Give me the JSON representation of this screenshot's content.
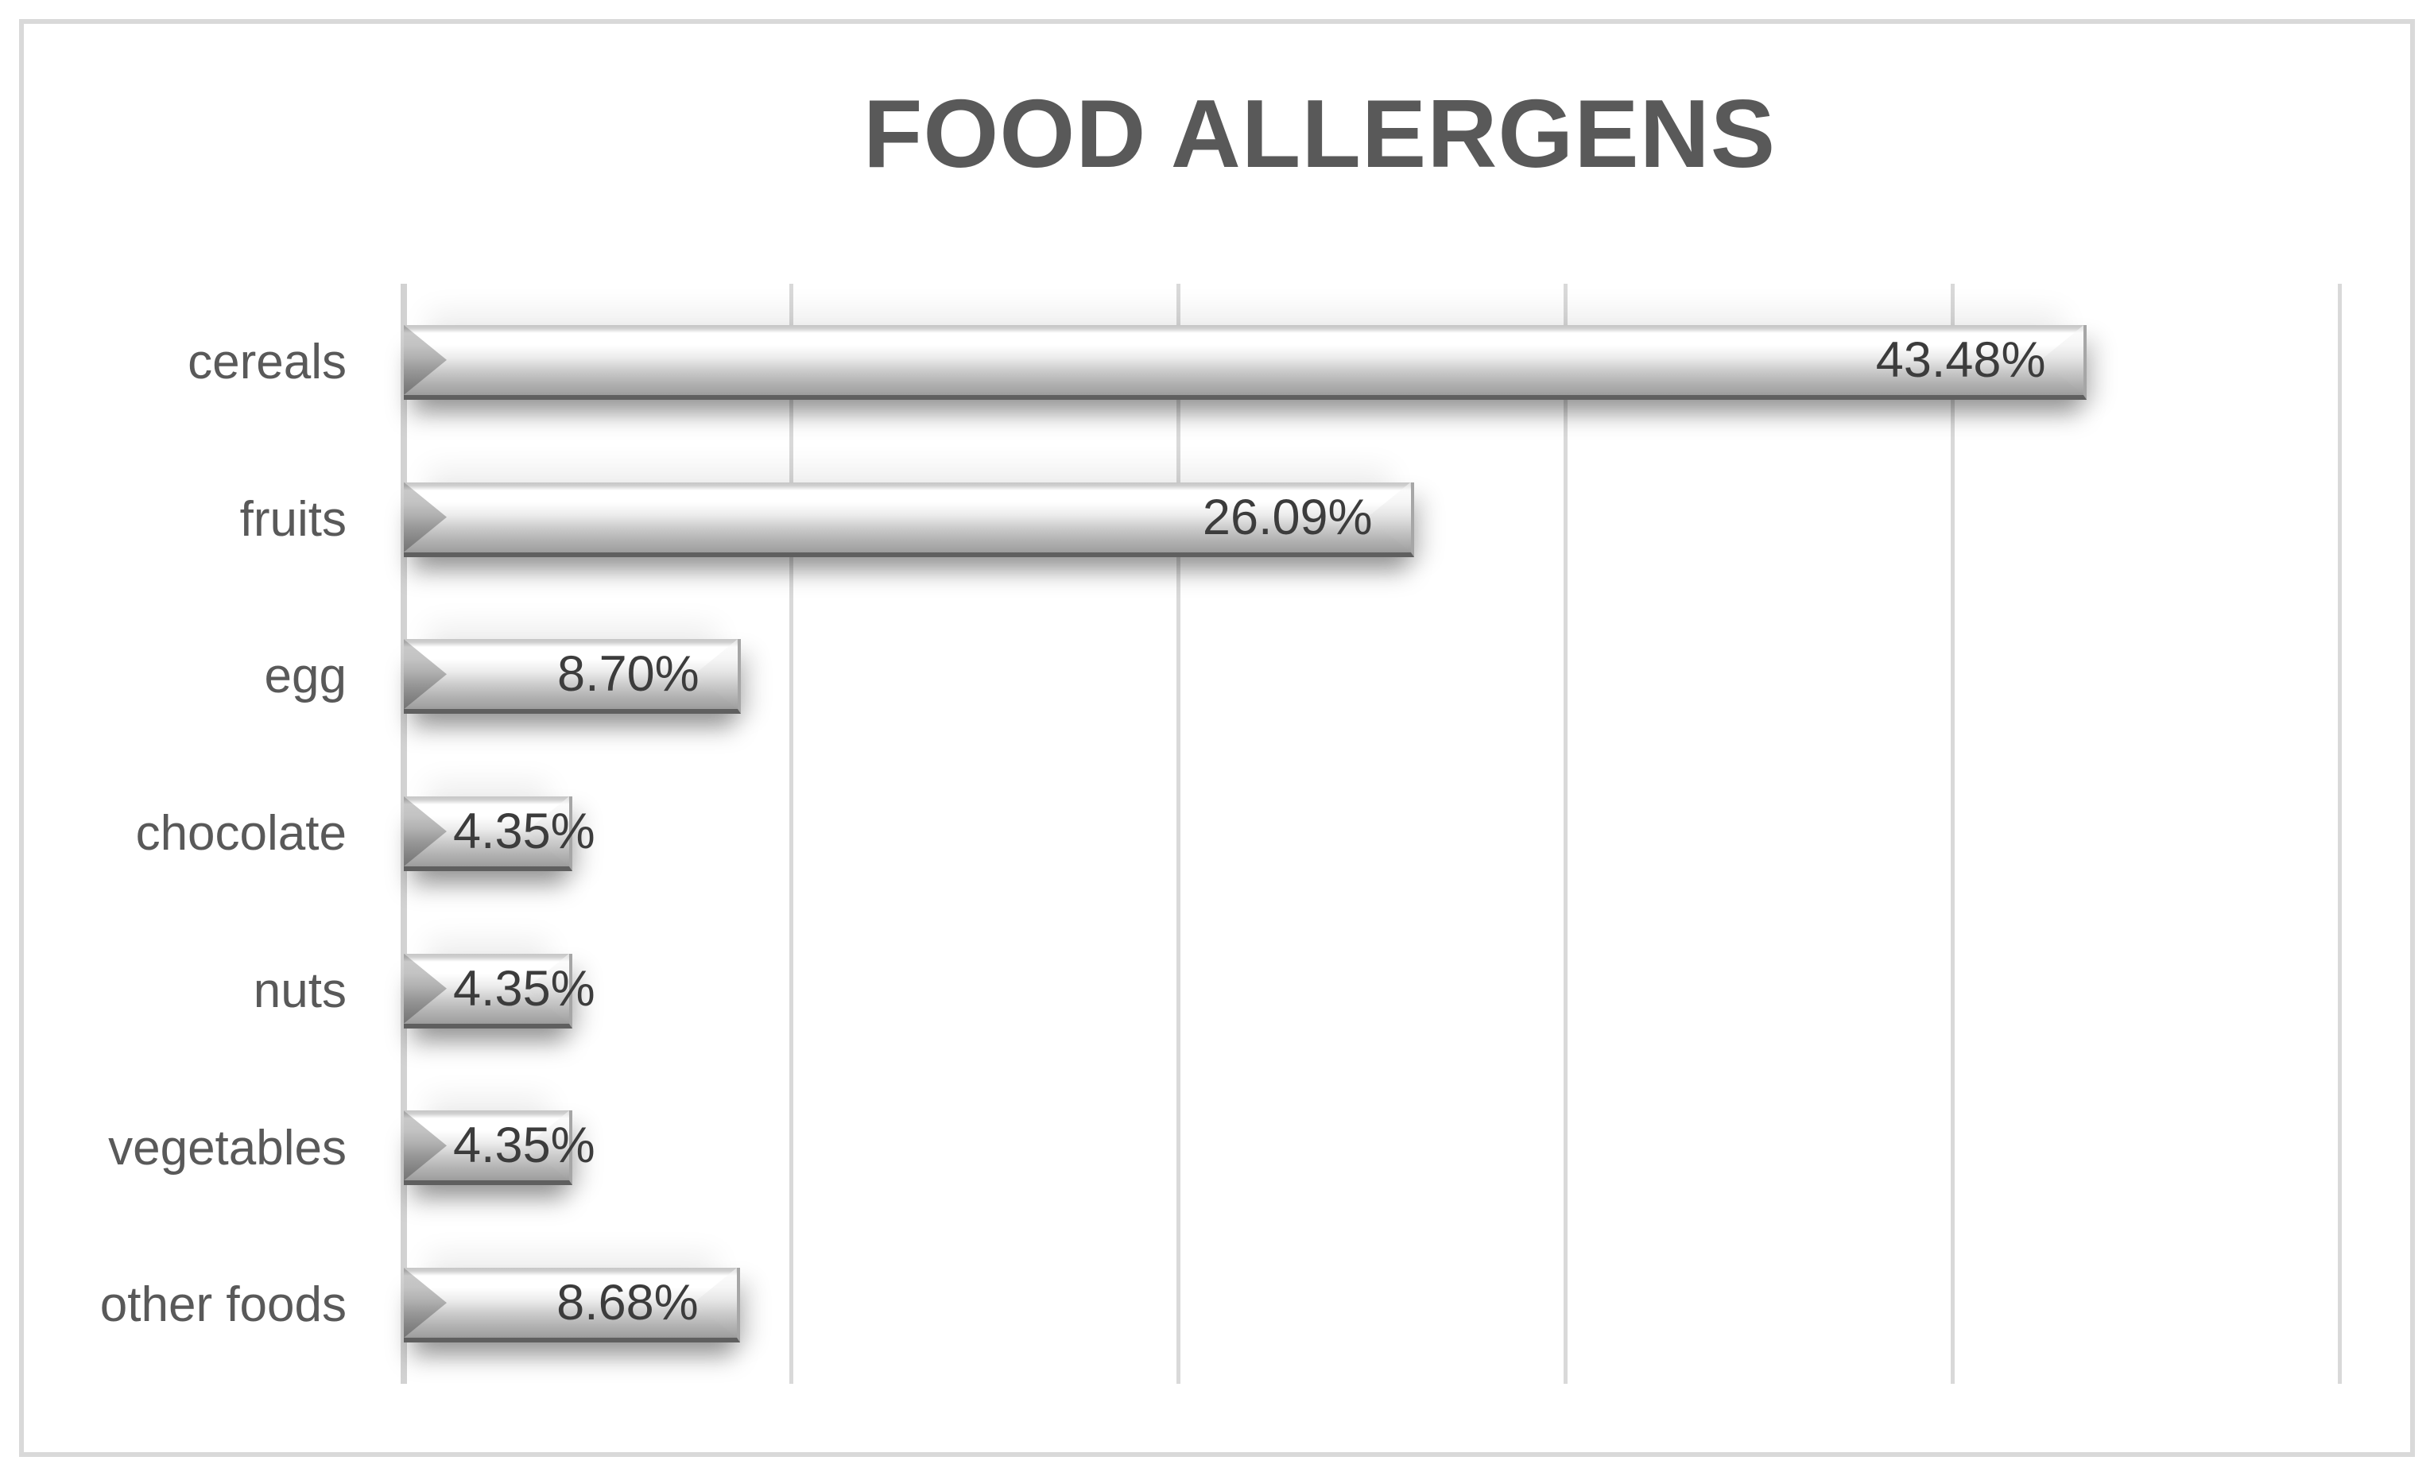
{
  "chart_data": {
    "type": "bar",
    "orientation": "horizontal",
    "title": "FOOD ALLERGENS",
    "categories": [
      "cereals",
      "fruits",
      "egg",
      "chocolate",
      "nuts",
      "vegetables",
      "other foods"
    ],
    "values": [
      43.48,
      26.09,
      8.7,
      4.35,
      4.35,
      4.35,
      8.68
    ],
    "data_labels": [
      "43.48%",
      "26.09%",
      "8.70%",
      "4.35%",
      "4.35%",
      "4.35%",
      "8.68%"
    ],
    "xlabel": "",
    "ylabel": "",
    "xlim": [
      0,
      51.5
    ],
    "gridlines_percent": [
      0,
      10,
      20,
      30,
      40,
      50
    ],
    "value_axis_tick_labels_visible": false,
    "grid": "vertical-only",
    "legend": "none",
    "data_label_position": "inside-end",
    "colors": {
      "title": "#595959",
      "category_label": "#595959",
      "data_label": "#3c3c3c",
      "gridline": "#d9d9d9",
      "frame_border": "#d9d9d9",
      "bar_highlight": "#ffffff",
      "bar_mid": "#9c9c9c",
      "bar_bottom_edge": "#5f5f5f",
      "background": "#ffffff"
    }
  }
}
